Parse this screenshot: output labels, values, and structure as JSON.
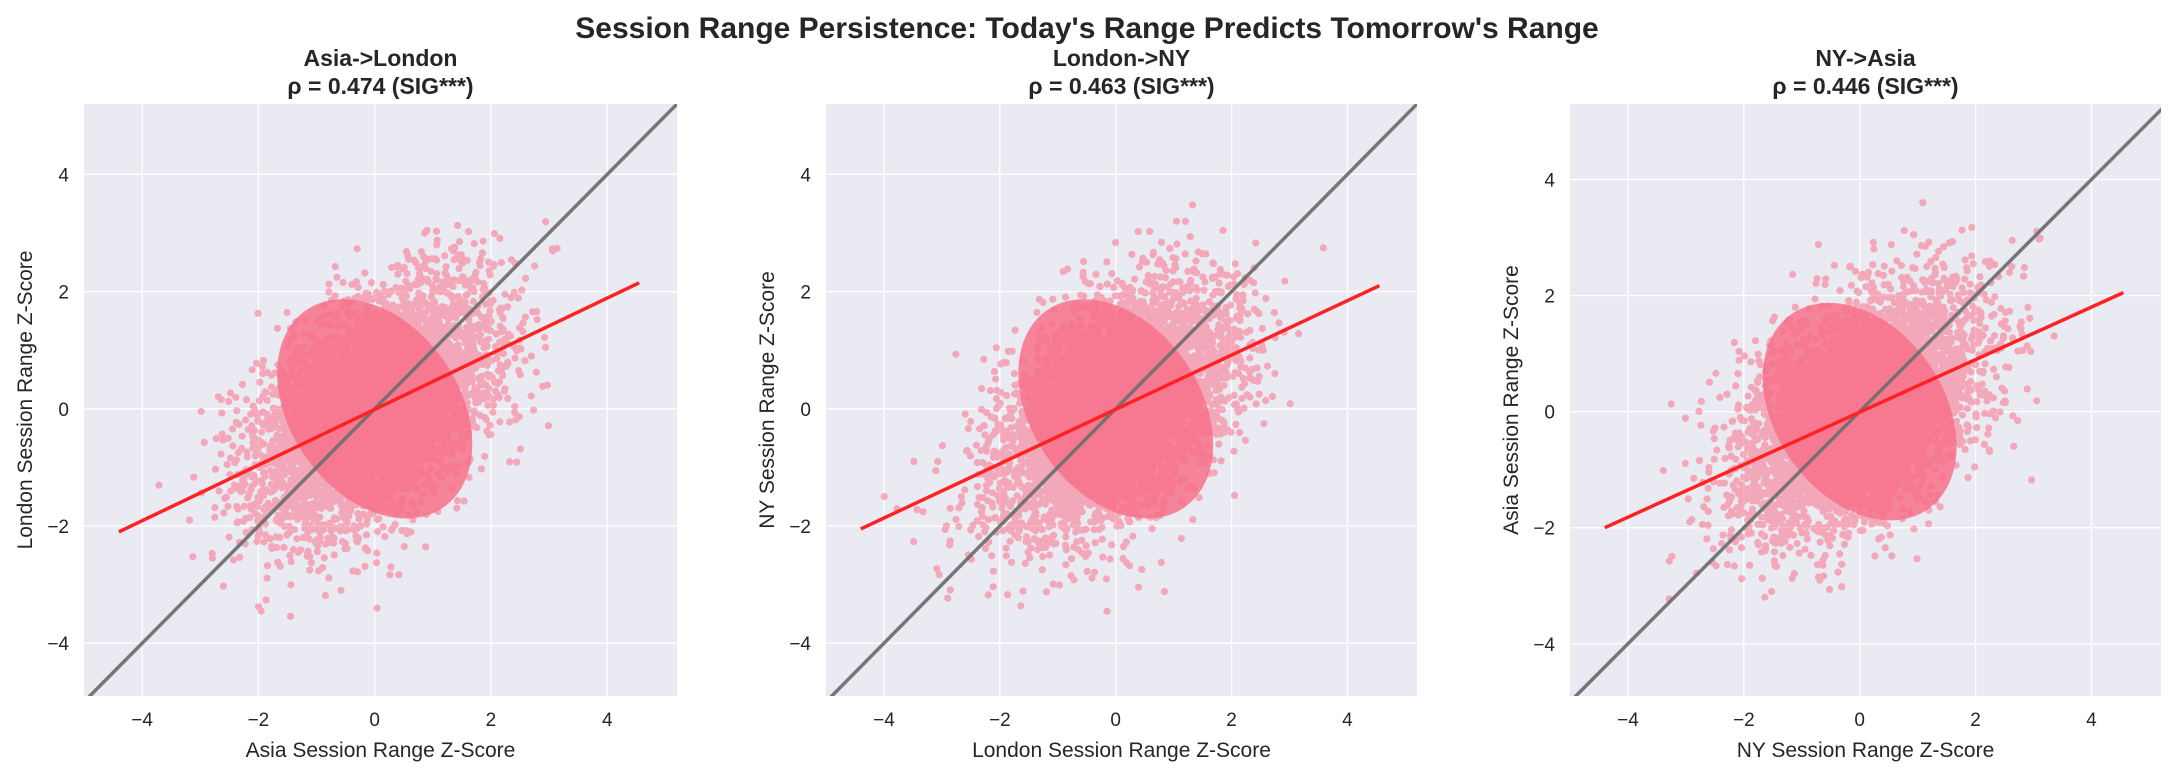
{
  "figure": {
    "suptitle": "Session Range Persistence: Today's Range Predicts Tomorrow's Range"
  },
  "colors": {
    "plot_background": "#EAEAF2",
    "grid": "#FFFFFF",
    "scatter": "#F77189",
    "regression_line": "#FF2222",
    "identity_line": "#707070",
    "text": "#262626"
  },
  "chart_data": [
    {
      "type": "scatter",
      "title": "Asia->London",
      "subtitle": "ρ = 0.474 (SIG***)",
      "xlabel": "Asia Session Range Z-Score",
      "ylabel": "London Session Range Z-Score",
      "xlim": [
        -5,
        5.2
      ],
      "ylim": [
        -4.9,
        5.2
      ],
      "xticks": [
        -4,
        -2,
        0,
        2,
        4
      ],
      "yticks": [
        -4,
        -2,
        0,
        2,
        4
      ],
      "grid": true,
      "rho": 0.474,
      "identity_line": true,
      "regression_line": {
        "x": [
          -4.4,
          4.55
        ],
        "y": [
          -2.1,
          2.15
        ]
      },
      "point_cloud": {
        "center": [
          0,
          0
        ],
        "sd_x": 1.0,
        "sd_y": 1.0,
        "correlation": 0.474,
        "x_range": [
          -4.5,
          4.6
        ],
        "y_range": [
          -4.5,
          4.7
        ]
      }
    },
    {
      "type": "scatter",
      "title": "London->NY",
      "subtitle": "ρ = 0.463 (SIG***)",
      "xlabel": "London Session Range Z-Score",
      "ylabel": "NY Session Range Z-Score",
      "xlim": [
        -5,
        5.2
      ],
      "ylim": [
        -4.9,
        5.2
      ],
      "xticks": [
        -4,
        -2,
        0,
        2,
        4
      ],
      "yticks": [
        -4,
        -2,
        0,
        2,
        4
      ],
      "grid": true,
      "rho": 0.463,
      "identity_line": true,
      "regression_line": {
        "x": [
          -4.4,
          4.55
        ],
        "y": [
          -2.05,
          2.1
        ]
      },
      "point_cloud": {
        "center": [
          0,
          0
        ],
        "sd_x": 1.0,
        "sd_y": 1.0,
        "correlation": 0.463,
        "x_range": [
          -4.4,
          4.6
        ],
        "y_range": [
          -4.4,
          4.6
        ]
      }
    },
    {
      "type": "scatter",
      "title": "NY->Asia",
      "subtitle": "ρ = 0.446 (SIG***)",
      "xlabel": "NY Session Range Z-Score",
      "ylabel": "Asia Session Range Z-Score",
      "xlim": [
        -5,
        5.2
      ],
      "ylim": [
        -4.9,
        5.3
      ],
      "xticks": [
        -4,
        -2,
        0,
        2,
        4
      ],
      "yticks": [
        -4,
        -2,
        0,
        2,
        4
      ],
      "grid": true,
      "rho": 0.446,
      "identity_line": true,
      "regression_line": {
        "x": [
          -4.4,
          4.55
        ],
        "y": [
          -2.0,
          2.05
        ]
      },
      "point_cloud": {
        "center": [
          0,
          0
        ],
        "sd_x": 1.0,
        "sd_y": 1.0,
        "correlation": 0.446,
        "x_range": [
          -4.5,
          4.6
        ],
        "y_range": [
          -4.4,
          4.9
        ]
      }
    }
  ]
}
